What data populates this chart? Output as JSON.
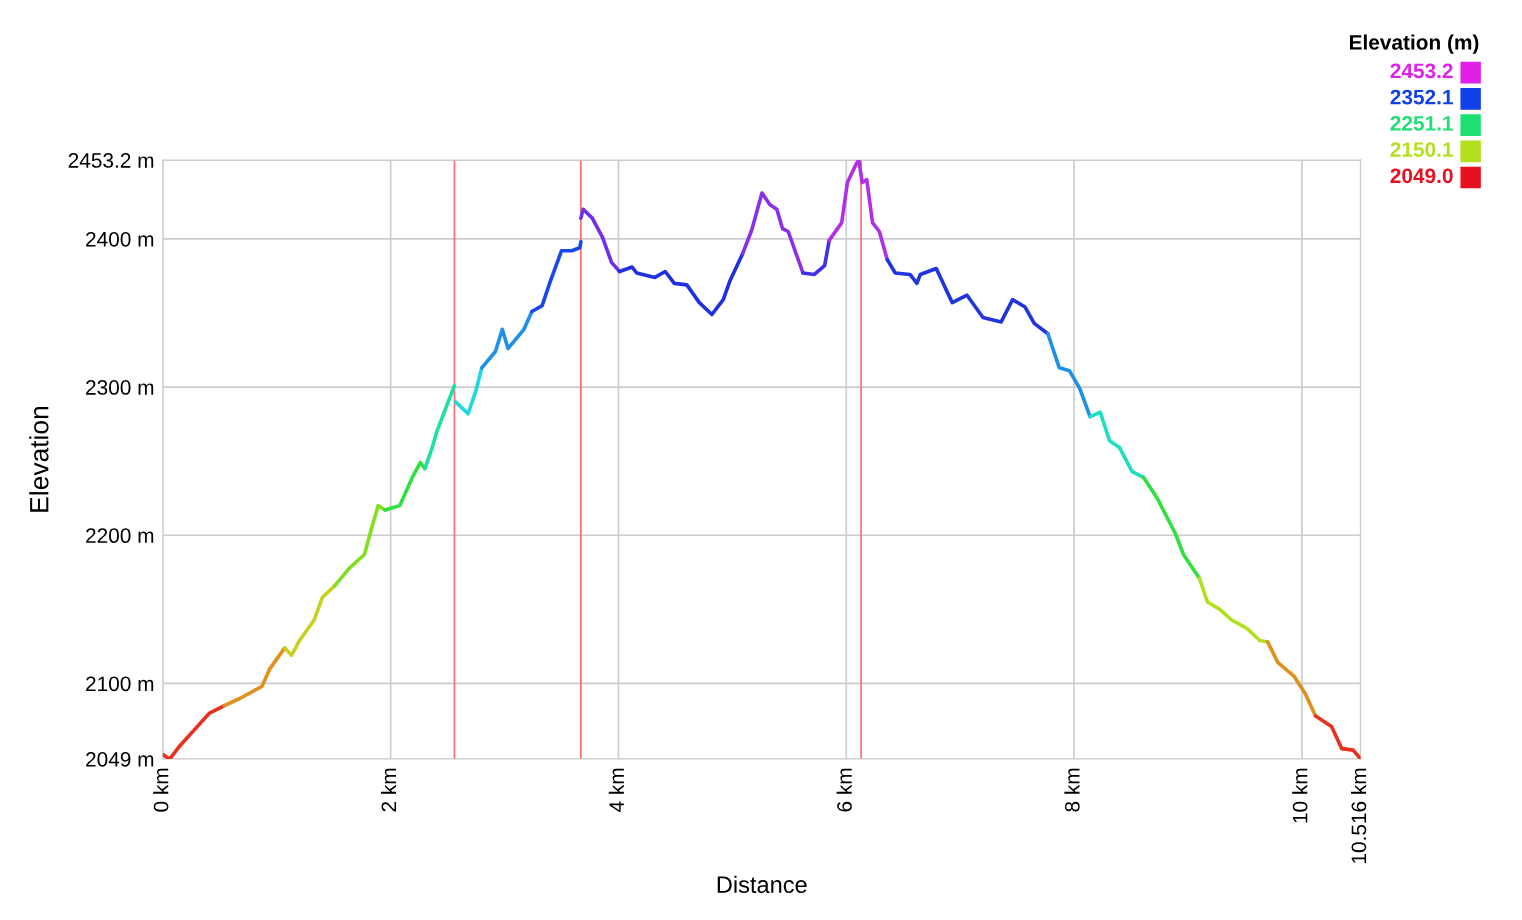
{
  "chart_data": {
    "type": "line",
    "xlabel": "Distance",
    "ylabel": "Elevation",
    "clabel": "Elevation (m)",
    "cticks": [
      {
        "value": 2453.2,
        "label": "2453.2"
      },
      {
        "value": 2352.1,
        "label": "2352.1"
      },
      {
        "value": 2251.1,
        "label": "2251.1"
      },
      {
        "value": 2150.1,
        "label": "2150.1"
      },
      {
        "value": 2049.0,
        "label": "2049.0"
      }
    ],
    "xlim": [
      0,
      10.516
    ],
    "ylim": [
      2049,
      2453.2
    ],
    "xticks": [
      {
        "value": 0,
        "label": "0 km"
      },
      {
        "value": 2,
        "label": "2 km"
      },
      {
        "value": 4,
        "label": "4 km"
      },
      {
        "value": 6,
        "label": "6 km"
      },
      {
        "value": 8,
        "label": "8 km"
      },
      {
        "value": 10,
        "label": "10 km"
      },
      {
        "value": 10.516,
        "label": "10.516 km"
      }
    ],
    "yticks": [
      {
        "value": 2049,
        "label": "2049 m"
      },
      {
        "value": 2100,
        "label": "2100 m"
      },
      {
        "value": 2200,
        "label": "2200 m"
      },
      {
        "value": 2300,
        "label": "2300 m"
      },
      {
        "value": 2400,
        "label": "2400 m"
      },
      {
        "value": 2453.2,
        "label": "2453.2 m"
      }
    ],
    "grid": true,
    "line_style": "solid",
    "marker": "none",
    "ref_lines": [
      {
        "axis": "x",
        "value": 2.56,
        "color": "#ff6b6b"
      },
      {
        "axis": "x",
        "value": 3.67,
        "color": "#ff6b6b"
      },
      {
        "axis": "x",
        "value": 6.13,
        "color": "#ff6b6b"
      }
    ],
    "series": [
      {
        "color": "#e8301e",
        "x": [
          0,
          0.06,
          0.15,
          0.28,
          0.41,
          0.54
        ],
        "values": [
          2052,
          2049,
          2058,
          2069,
          2080,
          2085
        ]
      },
      {
        "color": "#e0901e",
        "x": [
          0.54,
          0.68,
          0.87,
          0.94,
          1.07
        ],
        "values": [
          2085,
          2090,
          2098,
          2110,
          2124
        ]
      },
      {
        "color": "#c8d01e",
        "x": [
          1.07,
          1.13,
          1.2,
          1.33,
          1.4,
          1.51
        ],
        "values": [
          2124,
          2119,
          2129,
          2143,
          2158,
          2166
        ]
      },
      {
        "color": "#80e020",
        "x": [
          1.51,
          1.64,
          1.77,
          1.83,
          1.89,
          1.95
        ],
        "values": [
          2166,
          2178,
          2187,
          2204,
          2220,
          2217
        ]
      },
      {
        "color": "#30e040",
        "x": [
          1.95,
          2.08,
          2.19,
          2.26,
          2.3
        ],
        "values": [
          2217,
          2220,
          2239,
          2249,
          2245
        ]
      },
      {
        "color": "#1ee0a0",
        "x": [
          2.3,
          2.36,
          2.41,
          2.48,
          2.56
        ],
        "values": [
          2245,
          2258,
          2271,
          2285,
          2301
        ]
      },
      {
        "color": "#1ed8e0",
        "x": [
          2.57,
          2.68,
          2.75,
          2.8
        ],
        "values": [
          2290,
          2282,
          2298,
          2313
        ]
      },
      {
        "color": "#1e90e8",
        "x": [
          2.8,
          2.92,
          2.98,
          3.03,
          3.17,
          3.24
        ],
        "values": [
          2313,
          2324,
          2339,
          2326,
          2339,
          2351
        ]
      },
      {
        "color": "#1848e8",
        "x": [
          3.24,
          3.33,
          3.4,
          3.5,
          3.59,
          3.66,
          3.67
        ],
        "values": [
          2351,
          2355,
          2371,
          2392,
          2392,
          2394,
          2398
        ]
      },
      {
        "color": "#7030e8",
        "x": [
          3.67,
          3.69,
          3.77,
          3.86,
          3.94,
          4.01
        ],
        "values": [
          2414,
          2420,
          2414,
          2401,
          2384,
          2378
        ]
      },
      {
        "color": "#2030e0",
        "x": [
          4.01,
          4.12,
          4.16,
          4.32,
          4.41,
          4.49,
          4.6,
          4.71,
          4.82,
          4.92,
          4.98,
          5.09
        ],
        "values": [
          2378,
          2381,
          2377,
          2374,
          2378,
          2370,
          2369,
          2357,
          2349,
          2359,
          2372,
          2390
        ]
      },
      {
        "color": "#8a30e8",
        "x": [
          5.09,
          5.17,
          5.26,
          5.33,
          5.39,
          5.44,
          5.49,
          5.62
        ],
        "values": [
          2390,
          2406,
          2431,
          2423,
          2420,
          2407,
          2405,
          2377
        ]
      },
      {
        "color": "#4030e8",
        "x": [
          5.62,
          5.72,
          5.81,
          5.85
        ],
        "values": [
          2377,
          2376,
          2382,
          2399
        ]
      },
      {
        "color": "#b030e8",
        "x": [
          5.85,
          5.96,
          6.01,
          6.09,
          6.11,
          6.14,
          6.18,
          6.23,
          6.29,
          6.36
        ],
        "values": [
          2399,
          2411,
          2438,
          2451,
          2453.2,
          2438,
          2440,
          2411,
          2405,
          2386
        ]
      },
      {
        "color": "#2035e0",
        "x": [
          6.36,
          6.43,
          6.56,
          6.62,
          6.65,
          6.79,
          6.93,
          7.06,
          7.2,
          7.36,
          7.46,
          7.57,
          7.65,
          7.77
        ],
        "values": [
          2386,
          2377,
          2376,
          2370,
          2376,
          2380,
          2357,
          2362,
          2347,
          2344,
          2359,
          2354,
          2343,
          2336
        ]
      },
      {
        "color": "#1e90e8",
        "x": [
          7.77,
          7.87,
          7.96,
          8.05,
          8.14
        ],
        "values": [
          2336,
          2313,
          2311,
          2299,
          2280
        ]
      },
      {
        "color": "#1ee0c0",
        "x": [
          8.14,
          8.23,
          8.31,
          8.4,
          8.51,
          8.61
        ],
        "values": [
          2280,
          2283,
          2264,
          2259,
          2243,
          2239
        ]
      },
      {
        "color": "#30e040",
        "x": [
          8.61,
          8.73,
          8.89,
          8.96,
          9.1
        ],
        "values": [
          2239,
          2225,
          2201,
          2187,
          2171
        ]
      },
      {
        "color": "#b0e01e",
        "x": [
          9.1,
          9.17,
          9.28,
          9.38,
          9.52,
          9.63,
          9.7
        ],
        "values": [
          2171,
          2155,
          2150,
          2143,
          2137,
          2129,
          2128
        ]
      },
      {
        "color": "#e0901e",
        "x": [
          9.7,
          9.79,
          9.93,
          10.03,
          10.12
        ],
        "values": [
          2128,
          2114,
          2105,
          2093,
          2078
        ]
      },
      {
        "color": "#e8301e",
        "x": [
          10.12,
          10.26,
          10.35,
          10.45,
          10.516
        ],
        "values": [
          2078,
          2071,
          2056,
          2055,
          2049.0
        ]
      }
    ]
  }
}
